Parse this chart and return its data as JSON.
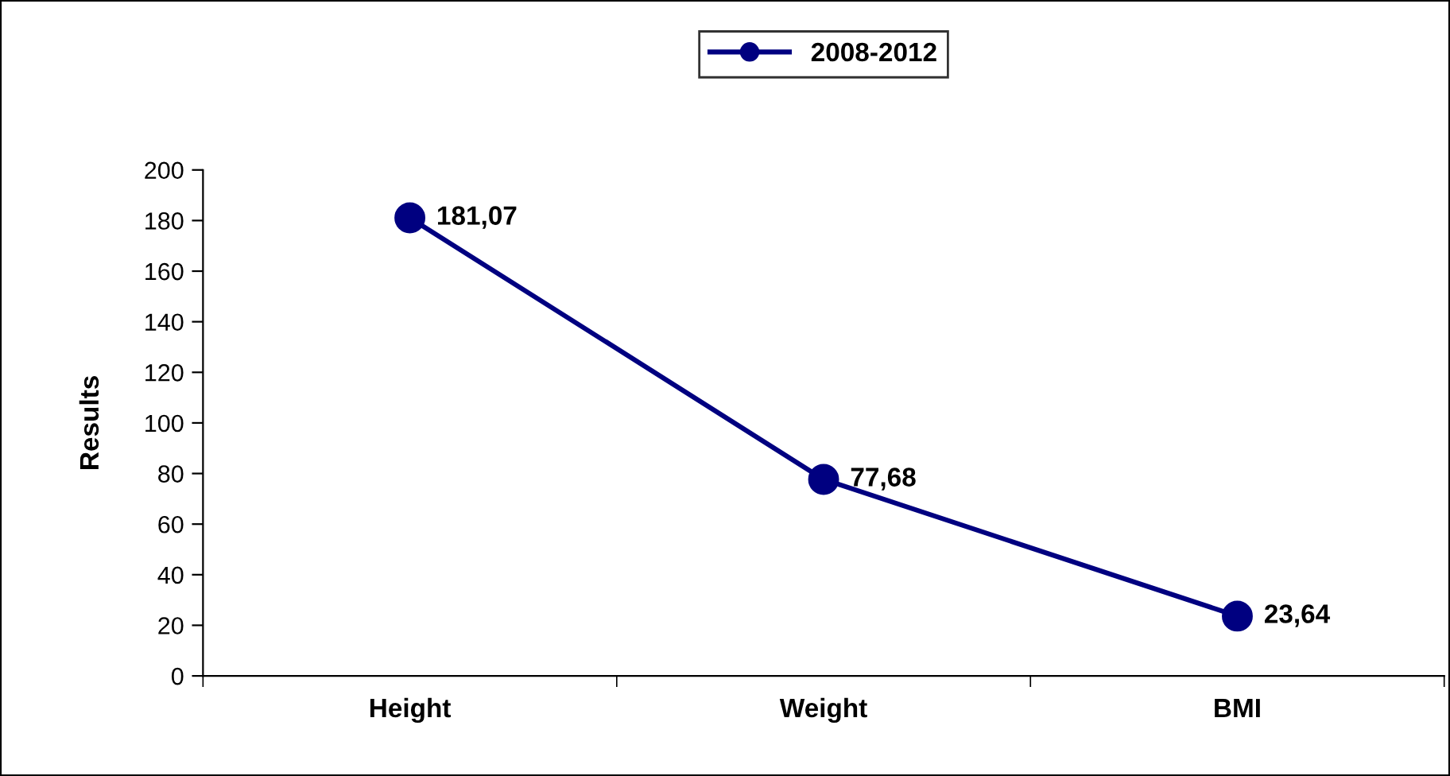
{
  "chart_data": {
    "type": "line",
    "ylabel": "Results",
    "categories": [
      "Height",
      "Weight",
      "BMI"
    ],
    "series": [
      {
        "name": "2008-2012",
        "color": "#000080",
        "values": [
          181.07,
          77.68,
          23.64
        ],
        "value_labels": [
          "181,07",
          "77,68",
          "23,64"
        ]
      }
    ],
    "ylim": [
      0,
      200
    ],
    "yticks": [
      0,
      20,
      40,
      60,
      80,
      100,
      120,
      140,
      160,
      180,
      200
    ],
    "grid": false,
    "legend": "top",
    "marker": "circle",
    "line_style": "solid"
  }
}
